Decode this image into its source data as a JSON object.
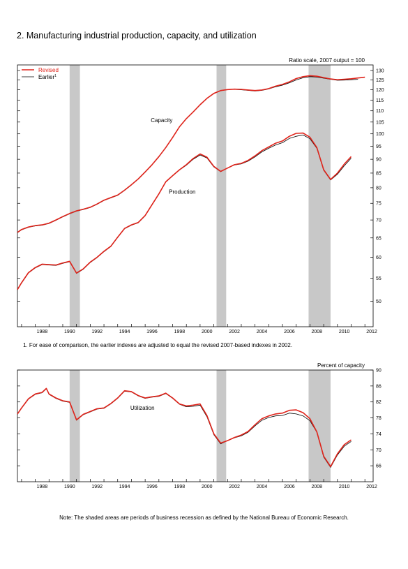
{
  "page": {
    "title": "2. Manufacturing industrial production, capacity, and utilization",
    "footnote": "1. For ease of comparison, the earlier indexes are adjusted to equal the revised 2007-based indexes in 2002.",
    "note": "Note: The shaded areas are periods of business recession as defined by the National Bureau of Economic Research."
  },
  "colors": {
    "revised": "#e0241b",
    "earlier": "#000000",
    "recession": "#c8c8c8"
  },
  "chart_data": [
    {
      "type": "line",
      "y_scale": "log",
      "ylabel": "Ratio scale, 2007 output = 100",
      "xlim": [
        1986.7,
        2012.6
      ],
      "ylim": [
        45,
        133
      ],
      "x_ticks": [
        "1988",
        "1990",
        "1992",
        "1994",
        "1996",
        "1998",
        "2000",
        "2002",
        "2004",
        "2006",
        "2008",
        "2010",
        "2012"
      ],
      "y_ticks": [
        50,
        55,
        60,
        65,
        70,
        75,
        80,
        85,
        90,
        95,
        100,
        105,
        110,
        115,
        120,
        125,
        130
      ],
      "legend": {
        "position": "top-left",
        "entries": [
          {
            "label": "Revised",
            "key": "revised"
          },
          {
            "label": "Earlier",
            "sup": "1",
            "key": "earlier"
          }
        ]
      },
      "annotations": [
        {
          "text": "Capacity",
          "x": 1997.2,
          "y": 105
        },
        {
          "text": "Production",
          "x": 1998.7,
          "y": 78
        }
      ],
      "recessions": [
        [
          1990.5,
          1991.25
        ],
        [
          2001.2,
          2001.9
        ],
        [
          2007.9,
          2009.5
        ]
      ],
      "series": [
        {
          "name": "Capacity",
          "key": "revised",
          "x": [
            1986.7,
            1987.0,
            1987.5,
            1988.0,
            1988.5,
            1989.0,
            1989.5,
            1990.0,
            1990.5,
            1991.0,
            1991.5,
            1992.0,
            1992.5,
            1993.0,
            1993.5,
            1994.0,
            1994.5,
            1995.0,
            1995.5,
            1996.0,
            1996.5,
            1997.0,
            1997.5,
            1998.0,
            1998.5,
            1999.0,
            1999.5,
            2000.0,
            2000.5,
            2001.0,
            2001.5,
            2002.0,
            2002.5,
            2003.0,
            2003.5,
            2004.0,
            2004.5,
            2005.0,
            2005.5,
            2006.0,
            2006.5,
            2007.0,
            2007.5,
            2008.0,
            2008.5,
            2009.0,
            2009.5,
            2010.0,
            2010.5,
            2011.0,
            2011.5,
            2012.0
          ],
          "values": [
            66.5,
            67.3,
            68.0,
            68.4,
            68.6,
            69.1,
            70.0,
            71.0,
            71.9,
            72.7,
            73.2,
            73.8,
            74.8,
            76.0,
            76.8,
            77.6,
            79.2,
            81.0,
            83.0,
            85.4,
            88.0,
            91.0,
            94.5,
            98.5,
            103.0,
            106.5,
            109.5,
            112.8,
            115.8,
            118.2,
            119.6,
            120.1,
            120.3,
            120.2,
            119.9,
            119.6,
            119.9,
            120.6,
            121.8,
            122.7,
            124.0,
            125.7,
            126.7,
            127.2,
            126.9,
            126.2,
            125.5,
            125.1,
            125.3,
            125.6,
            126.0,
            126.4
          ]
        },
        {
          "name": "Capacity (earlier)",
          "key": "earlier",
          "x": [
            1986.7,
            1987.0,
            1987.5,
            1988.0,
            1988.5,
            1989.0,
            1989.5,
            1990.0,
            1990.5,
            1991.0,
            1991.5,
            1992.0,
            1992.5,
            1993.0,
            1993.5,
            1994.0,
            1994.5,
            1995.0,
            1995.5,
            1996.0,
            1996.5,
            1997.0,
            1997.5,
            1998.0,
            1998.5,
            1999.0,
            1999.5,
            2000.0,
            2000.5,
            2001.0,
            2001.5,
            2002.0,
            2002.5,
            2003.0,
            2003.5,
            2004.0,
            2004.5,
            2005.0,
            2005.5,
            2006.0,
            2006.5,
            2007.0,
            2007.5,
            2008.0,
            2008.5,
            2009.0,
            2009.5,
            2010.0,
            2010.5,
            2011.0,
            2011.5
          ],
          "values": [
            66.4,
            67.2,
            67.9,
            68.3,
            68.5,
            69.0,
            69.9,
            70.9,
            71.8,
            72.6,
            73.1,
            73.7,
            74.7,
            75.9,
            76.7,
            77.5,
            79.1,
            80.9,
            82.9,
            85.3,
            87.9,
            90.9,
            94.4,
            98.4,
            102.9,
            106.4,
            109.4,
            112.7,
            115.7,
            118.1,
            119.5,
            120.1,
            120.2,
            120.0,
            119.7,
            119.4,
            119.7,
            120.4,
            121.5,
            122.3,
            123.5,
            125.0,
            126.1,
            126.7,
            126.5,
            125.9,
            125.3,
            124.8,
            124.9,
            125.1,
            125.3
          ]
        },
        {
          "name": "Production",
          "key": "revised",
          "x": [
            1986.7,
            1987.0,
            1987.5,
            1988.0,
            1988.5,
            1989.0,
            1989.5,
            1990.0,
            1990.5,
            1991.0,
            1991.5,
            1992.0,
            1992.5,
            1993.0,
            1993.5,
            1994.0,
            1994.5,
            1995.0,
            1995.5,
            1996.0,
            1996.5,
            1997.0,
            1997.5,
            1998.0,
            1998.5,
            1999.0,
            1999.5,
            2000.0,
            2000.5,
            2001.0,
            2001.5,
            2002.0,
            2002.5,
            2003.0,
            2003.5,
            2004.0,
            2004.5,
            2005.0,
            2005.5,
            2006.0,
            2006.5,
            2007.0,
            2007.5,
            2008.0,
            2008.5,
            2009.0,
            2009.5,
            2010.0,
            2010.5,
            2011.0
          ],
          "values": [
            52.5,
            54.0,
            56.3,
            57.5,
            58.3,
            58.2,
            58.1,
            58.6,
            59.0,
            56.2,
            57.2,
            58.8,
            60.0,
            61.5,
            62.8,
            65.2,
            67.6,
            68.6,
            69.3,
            71.3,
            74.6,
            78.0,
            82.0,
            84.1,
            86.2,
            88.0,
            90.3,
            92.0,
            90.8,
            87.4,
            85.6,
            86.8,
            88.0,
            88.5,
            89.6,
            91.3,
            93.3,
            94.7,
            96.2,
            97.1,
            99.0,
            100.2,
            100.3,
            98.6,
            94.5,
            86.2,
            82.8,
            85.0,
            88.2,
            91.0
          ]
        },
        {
          "name": "Production (earlier)",
          "key": "earlier",
          "x": [
            1986.7,
            1987.0,
            1987.5,
            1988.0,
            1988.5,
            1989.0,
            1989.5,
            1990.0,
            1990.5,
            1991.0,
            1991.5,
            1992.0,
            1992.5,
            1993.0,
            1993.5,
            1994.0,
            1994.5,
            1995.0,
            1995.5,
            1996.0,
            1996.5,
            1997.0,
            1997.5,
            1998.0,
            1998.5,
            1999.0,
            1999.5,
            2000.0,
            2000.5,
            2001.0,
            2001.5,
            2002.0,
            2002.5,
            2003.0,
            2003.5,
            2004.0,
            2004.5,
            2005.0,
            2005.5,
            2006.0,
            2006.5,
            2007.0,
            2007.5,
            2008.0,
            2008.5,
            2009.0,
            2009.5,
            2010.0,
            2010.5,
            2011.0
          ],
          "values": [
            52.4,
            53.9,
            56.2,
            57.4,
            58.2,
            58.1,
            58.0,
            58.5,
            58.9,
            56.1,
            57.1,
            58.7,
            59.9,
            61.4,
            62.7,
            65.1,
            67.5,
            68.5,
            69.2,
            71.2,
            74.5,
            77.9,
            81.9,
            84.0,
            86.1,
            87.8,
            90.0,
            91.6,
            90.5,
            87.2,
            85.5,
            86.8,
            87.9,
            88.3,
            89.3,
            90.9,
            92.8,
            94.2,
            95.5,
            96.4,
            98.1,
            99.0,
            99.5,
            98.0,
            94.2,
            86.0,
            82.6,
            84.6,
            87.6,
            90.4
          ]
        }
      ]
    },
    {
      "type": "line",
      "ylabel": "Percent of capacity",
      "xlim": [
        1986.7,
        2012.6
      ],
      "ylim": [
        62,
        90
      ],
      "x_ticks": [
        "1988",
        "1990",
        "1992",
        "1994",
        "1996",
        "1998",
        "2000",
        "2002",
        "2004",
        "2006",
        "2008",
        "2010",
        "2012"
      ],
      "y_ticks": [
        66,
        70,
        74,
        78,
        82,
        86,
        90
      ],
      "annotations": [
        {
          "text": "Utilization",
          "x": 1995.8,
          "y": 80
        }
      ],
      "recessions": [
        [
          1990.5,
          1991.25
        ],
        [
          2001.2,
          2001.9
        ],
        [
          2007.9,
          2009.5
        ]
      ],
      "series": [
        {
          "name": "Utilization",
          "key": "revised",
          "x": [
            1986.7,
            1987.0,
            1987.5,
            1988.0,
            1988.5,
            1988.8,
            1989.0,
            1989.5,
            1990.0,
            1990.5,
            1991.0,
            1991.5,
            1992.0,
            1992.5,
            1993.0,
            1993.5,
            1994.0,
            1994.5,
            1995.0,
            1995.5,
            1996.0,
            1996.5,
            1997.0,
            1997.5,
            1998.0,
            1998.5,
            1999.0,
            1999.5,
            2000.0,
            2000.5,
            2001.0,
            2001.5,
            2002.0,
            2002.5,
            2003.0,
            2003.5,
            2004.0,
            2004.5,
            2005.0,
            2005.5,
            2006.0,
            2006.5,
            2007.0,
            2007.5,
            2008.0,
            2008.5,
            2009.0,
            2009.5,
            2010.0,
            2010.5,
            2011.0
          ],
          "values": [
            79.0,
            80.5,
            82.8,
            84.0,
            84.4,
            85.4,
            84.0,
            83.0,
            82.3,
            82.0,
            77.5,
            78.9,
            79.6,
            80.3,
            80.5,
            81.6,
            83.0,
            84.8,
            84.6,
            83.6,
            83.0,
            83.3,
            83.5,
            84.2,
            83.0,
            81.5,
            81.0,
            81.2,
            81.5,
            78.6,
            74.0,
            71.7,
            72.3,
            73.1,
            73.7,
            74.6,
            76.3,
            77.8,
            78.5,
            79.0,
            79.2,
            79.9,
            80.0,
            79.3,
            77.8,
            74.5,
            68.4,
            65.8,
            69.0,
            71.3,
            72.5
          ]
        },
        {
          "name": "Utilization (earlier)",
          "key": "earlier",
          "x": [
            1986.7,
            1987.0,
            1987.5,
            1988.0,
            1988.5,
            1988.8,
            1989.0,
            1989.5,
            1990.0,
            1990.5,
            1991.0,
            1991.5,
            1992.0,
            1992.5,
            1993.0,
            1993.5,
            1994.0,
            1994.5,
            1995.0,
            1995.5,
            1996.0,
            1996.5,
            1997.0,
            1997.5,
            1998.0,
            1998.5,
            1999.0,
            1999.5,
            2000.0,
            2000.5,
            2001.0,
            2001.5,
            2002.0,
            2002.5,
            2003.0,
            2003.5,
            2004.0,
            2004.5,
            2005.0,
            2005.5,
            2006.0,
            2006.5,
            2007.0,
            2007.5,
            2008.0,
            2008.5,
            2009.0,
            2009.5,
            2010.0,
            2010.5,
            2011.0
          ],
          "values": [
            78.9,
            80.4,
            82.7,
            83.9,
            84.3,
            85.3,
            83.9,
            82.9,
            82.2,
            81.9,
            77.4,
            78.8,
            79.5,
            80.2,
            80.4,
            81.5,
            82.9,
            84.7,
            84.5,
            83.5,
            82.9,
            83.2,
            83.4,
            84.1,
            82.9,
            81.4,
            80.8,
            80.9,
            81.2,
            78.3,
            73.8,
            71.5,
            72.3,
            73.0,
            73.5,
            74.4,
            76.0,
            77.4,
            78.1,
            78.5,
            78.6,
            79.2,
            79.0,
            78.5,
            77.3,
            74.4,
            68.2,
            65.6,
            68.7,
            70.9,
            72.1
          ]
        }
      ]
    }
  ]
}
